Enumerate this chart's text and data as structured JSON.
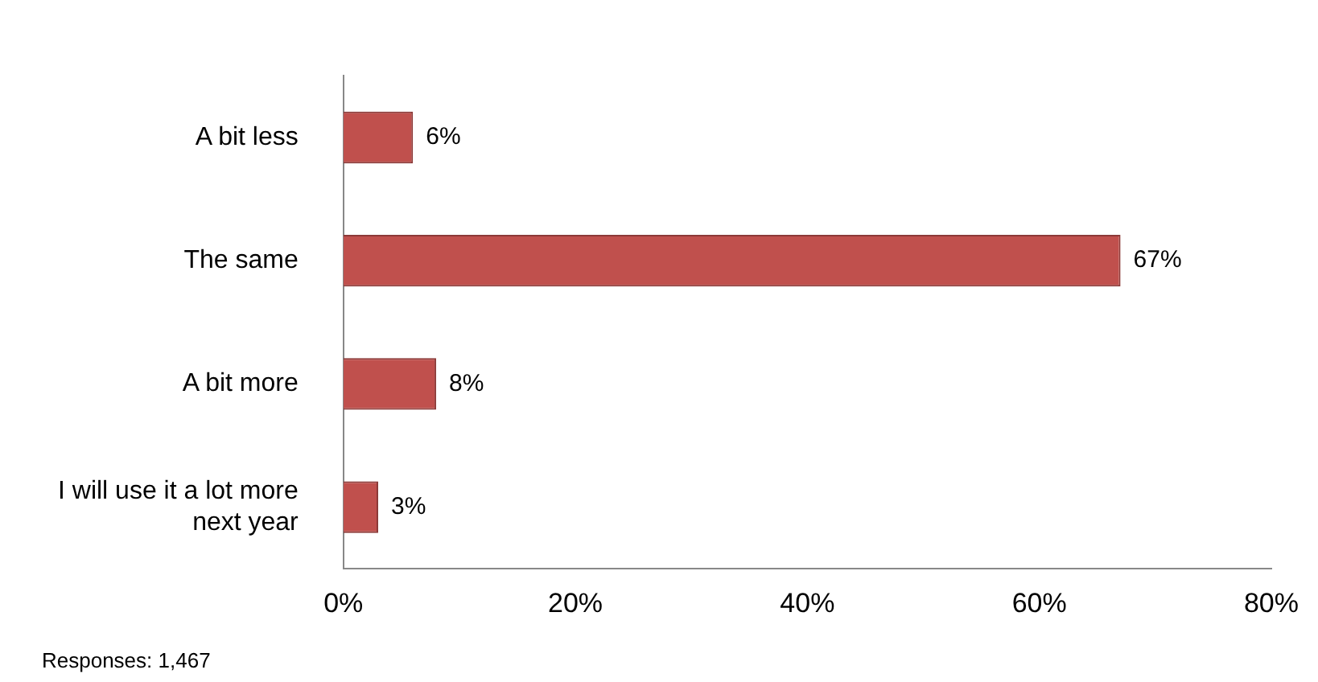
{
  "chart_data": {
    "type": "bar",
    "orientation": "horizontal",
    "categories": [
      "A bit less",
      "The same",
      "A bit more",
      "I will use it a lot more next year"
    ],
    "values": [
      6,
      67,
      8,
      3
    ],
    "value_labels": [
      "6%",
      "67%",
      "8%",
      "3%"
    ],
    "color": "#c0504d",
    "xlim": [
      0,
      80
    ],
    "xticks": [
      {
        "value": 0,
        "label": "0%"
      },
      {
        "value": 20,
        "label": "20%"
      },
      {
        "value": 40,
        "label": "40%"
      },
      {
        "value": 60,
        "label": "60%"
      },
      {
        "value": 80,
        "label": "80%"
      }
    ],
    "annotations": [
      "Responses: 1,467"
    ]
  }
}
